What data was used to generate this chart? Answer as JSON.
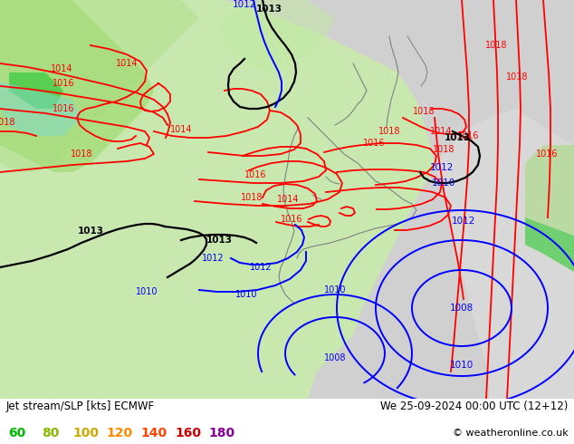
{
  "title_left": "Jet stream/SLP [kts] ECMWF",
  "title_right": "We 25-09-2024 00:00 UTC (12+12)",
  "copyright": "© weatheronline.co.uk",
  "legend_values": [
    "60",
    "80",
    "100",
    "120",
    "140",
    "160",
    "180"
  ],
  "legend_colors": [
    "#00bb00",
    "#88bb00",
    "#ccaa00",
    "#ff8800",
    "#ff4400",
    "#cc0000",
    "#880099"
  ],
  "background_color": "#ffffff",
  "fig_width": 6.34,
  "fig_height": 4.9,
  "dpi": 100,
  "red": "#ff0000",
  "blue": "#0000ff",
  "black": "#000000",
  "gray": "#808080"
}
